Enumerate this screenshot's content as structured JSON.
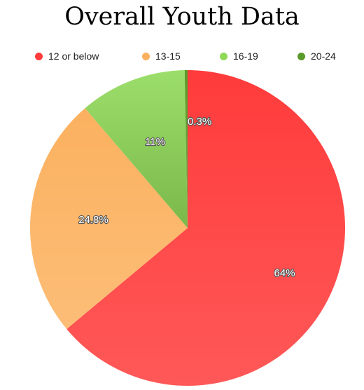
{
  "chart_data": {
    "type": "pie",
    "title": "Overall Youth Data",
    "legend_position": "top",
    "categories": [
      "12 or below",
      "13-15",
      "16-19",
      "20-24"
    ],
    "values": [
      64,
      24.8,
      11,
      0.3
    ],
    "labels": [
      "64%",
      "24.8%",
      "11%",
      "0.3%"
    ],
    "colors": [
      "#ff3b3b",
      "#fbb15f",
      "#8fd957",
      "#5a9a2a"
    ]
  }
}
